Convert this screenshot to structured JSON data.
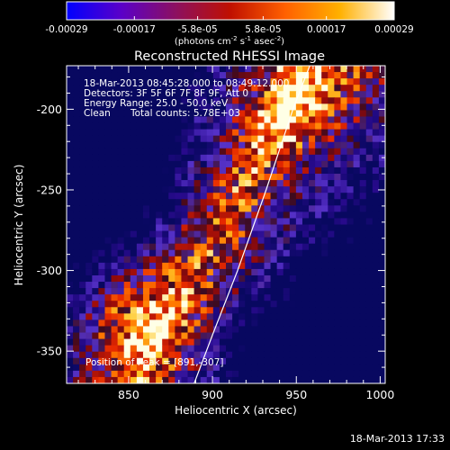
{
  "chart_data": {
    "type": "heatmap",
    "title": "Reconstructed RHESSI Image",
    "xlabel": "Heliocentric X (arcsec)",
    "ylabel": "Heliocentric Y (arcsec)",
    "xlim": [
      813,
      1003
    ],
    "ylim": [
      -370,
      -173
    ],
    "x_ticks": [
      850,
      900,
      950,
      1000
    ],
    "y_ticks": [
      -350,
      -300,
      -250,
      -200
    ],
    "colorbar": {
      "min": -0.00029,
      "max": 0.00029,
      "tick_values": [
        -0.00029,
        -0.00017,
        -5.8e-05,
        5.8e-05,
        0.00017,
        0.00029
      ],
      "tick_labels": [
        "-0.00029",
        "-0.00017",
        "-5.8e-05",
        "5.8e-05",
        "0.00017",
        "0.00029"
      ],
      "label_prefix": "(photons cm",
      "label_exp1": "-2",
      "label_mid": " s",
      "label_exp2": "-1",
      "label_unit": " asec",
      "label_exp3": "-2",
      "label_suffix": ")",
      "colors": [
        "#0000ff",
        "#5a00c8",
        "#8c1060",
        "#c01000",
        "#ff6000",
        "#ffb000",
        "#ffffff"
      ]
    },
    "annotations": {
      "time_range": "18-Mar-2013 08:45:28.000 to 08:49:12.000",
      "detectors": "Detectors: 3F 5F 6F 7F 8F 9F, Att 0",
      "energy": "Energy Range: 25.0 - 50.0 keV",
      "method": "Clean",
      "counts": "Total counts: 5.78E+03",
      "peak": "Position of Peak = [891,-307]"
    },
    "peak": [
      891,
      -307
    ],
    "limb": [
      [
        888,
        -373
      ],
      [
        900,
        -340
      ],
      [
        915,
        -300
      ],
      [
        932,
        -250
      ],
      [
        948,
        -200
      ],
      [
        958,
        -173
      ]
    ]
  },
  "footer": {
    "timestamp": "18-Mar-2013 17:33"
  }
}
